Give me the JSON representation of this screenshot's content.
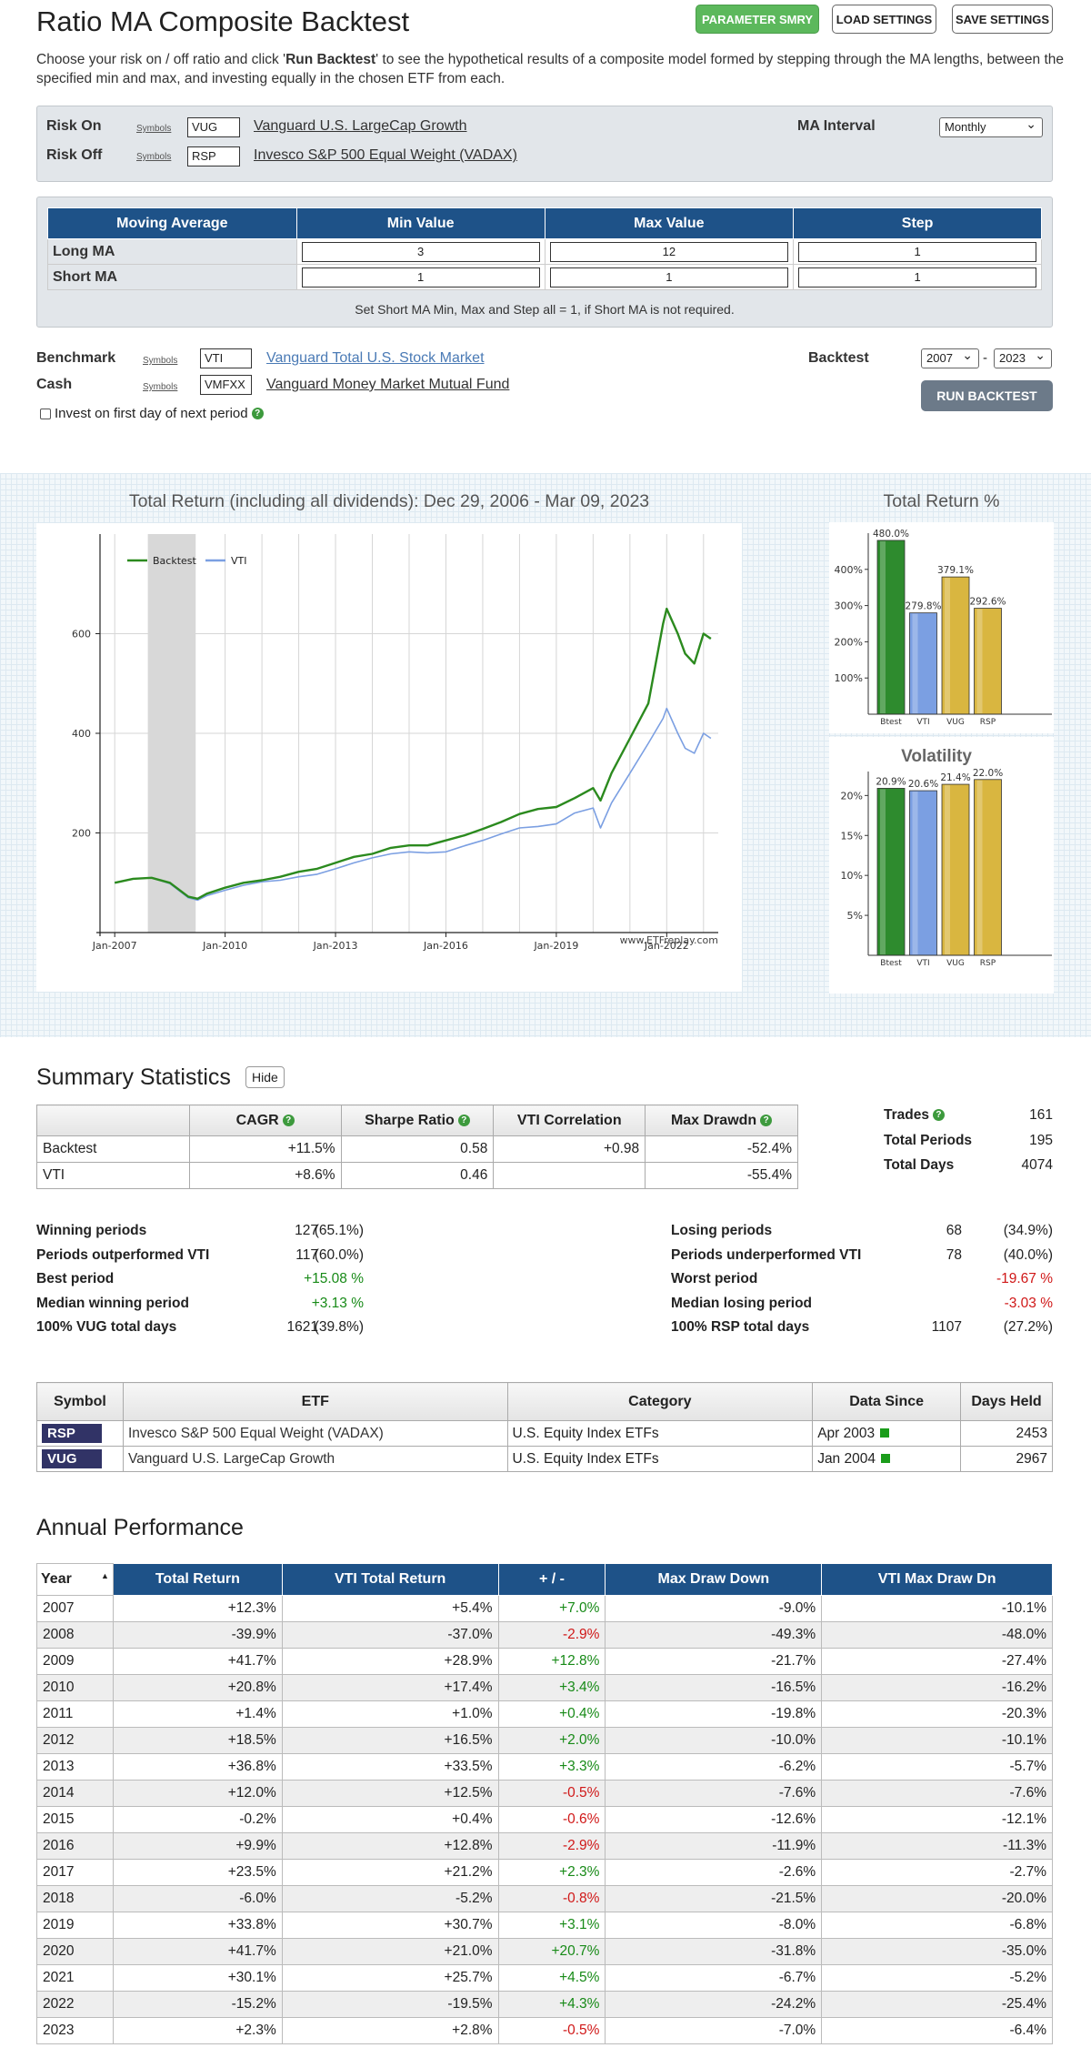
{
  "header": {
    "title": "Ratio MA Composite Backtest",
    "param_btn": "PARAMETER SMRY",
    "load_btn": "LOAD SETTINGS",
    "save_btn": "SAVE SETTINGS"
  },
  "intro": {
    "before": "Choose your risk on / off ratio and click '",
    "bold": "Run Backtest",
    "after": "' to see the hypothetical results of a composite model formed by stepping through the MA lengths, between the specified min and max, and investing equally in the chosen ETF from each."
  },
  "risk": {
    "on_label": "Risk On",
    "off_label": "Risk Off",
    "symbols_label": "Symbols",
    "on_symbol": "VUG",
    "off_symbol": "RSP",
    "on_name": "Vanguard U.S. LargeCap Growth",
    "off_name": "Invesco S&P 500 Equal Weight (VADAX)",
    "interval_label": "MA Interval",
    "interval_value": "Monthly"
  },
  "ma_table": {
    "headers": [
      "Moving Average",
      "Min Value",
      "Max Value",
      "Step"
    ],
    "rows": [
      {
        "label": "Long MA",
        "min": "3",
        "max": "12",
        "step": "1"
      },
      {
        "label": "Short MA",
        "min": "1",
        "max": "1",
        "step": "1"
      }
    ],
    "note": "Set Short MA Min, Max and Step all = 1, if Short MA is not required."
  },
  "settings": {
    "benchmark_label": "Benchmark",
    "benchmark_symbol": "VTI",
    "benchmark_name": "Vanguard Total U.S. Stock Market",
    "cash_label": "Cash",
    "cash_symbol": "VMFXX",
    "cash_name": "Vanguard Money Market Mutual Fund",
    "invest_first_day": "Invest on first day of next period",
    "backtest_label": "Backtest",
    "year_from": "2007",
    "year_to": "2023",
    "dash": "-",
    "run_btn": "RUN BACKTEST"
  },
  "chart_title": "Total Return (including all dividends): Dec 29, 2006 - Mar 09, 2023",
  "chart_data": [
    {
      "type": "line",
      "title": "Total Return (including all dividends): Dec 29, 2006 - Mar 09, 2023",
      "watermark": "www.ETFreplay.com",
      "x": [
        "2007",
        "2007.5",
        "2008",
        "2008.5",
        "2009",
        "2009.25",
        "2009.5",
        "2010",
        "2010.5",
        "2011",
        "2011.5",
        "2012",
        "2012.5",
        "2013",
        "2013.5",
        "2014",
        "2014.5",
        "2015",
        "2015.5",
        "2016",
        "2016.5",
        "2017",
        "2017.5",
        "2018",
        "2018.5",
        "2019",
        "2019.5",
        "2020",
        "2020.2",
        "2020.5",
        "2021",
        "2021.5",
        "2021.9",
        "2022",
        "2022.3",
        "2022.5",
        "2022.75",
        "2023",
        "2023.2"
      ],
      "x_ticks": [
        "Jan-2007",
        "Jan-2010",
        "Jan-2013",
        "Jan-2016",
        "Jan-2019",
        "Jan-2022"
      ],
      "y_ticks": [
        "200",
        "400",
        "600"
      ],
      "ylim": [
        0,
        800
      ],
      "legend_position": "top-left",
      "shaded_region": [
        "2007.9",
        "2009.2"
      ],
      "series": [
        {
          "name": "Backtest",
          "color": "#2b8a1e",
          "values": [
            100,
            108,
            110,
            100,
            72,
            68,
            78,
            90,
            100,
            105,
            112,
            122,
            128,
            140,
            152,
            158,
            170,
            175,
            175,
            185,
            195,
            208,
            222,
            238,
            248,
            252,
            270,
            290,
            265,
            320,
            390,
            460,
            620,
            650,
            600,
            560,
            540,
            600,
            590
          ]
        },
        {
          "name": "VTI",
          "color": "#7b9fe2",
          "values": [
            100,
            108,
            110,
            98,
            70,
            65,
            74,
            85,
            95,
            102,
            105,
            112,
            117,
            128,
            140,
            150,
            158,
            162,
            160,
            162,
            174,
            185,
            198,
            210,
            213,
            218,
            240,
            250,
            210,
            260,
            320,
            380,
            430,
            450,
            400,
            370,
            360,
            400,
            390
          ]
        }
      ]
    },
    {
      "type": "bar",
      "title": "Total Return %",
      "categories": [
        "Btest",
        "VTI",
        "VUG",
        "RSP"
      ],
      "values": [
        480.0,
        279.8,
        379.1,
        292.6
      ],
      "labels": [
        "480.0%",
        "279.8%",
        "379.1%",
        "292.6%"
      ],
      "y_ticks": [
        "100%",
        "200%",
        "300%",
        "400%"
      ],
      "ylim": [
        0,
        500
      ],
      "colors": [
        "#2e8b2e",
        "#7b9fe2",
        "#d9b640",
        "#d9b640"
      ]
    },
    {
      "type": "bar",
      "title": "Volatility",
      "categories": [
        "Btest",
        "VTI",
        "VUG",
        "RSP"
      ],
      "values": [
        20.9,
        20.6,
        21.4,
        22.0
      ],
      "labels": [
        "20.9%",
        "20.6%",
        "21.4%",
        "22.0%"
      ],
      "y_ticks": [
        "5%",
        "10%",
        "15%",
        "20%"
      ],
      "ylim": [
        0,
        23
      ],
      "colors": [
        "#2e8b2e",
        "#7b9fe2",
        "#d9b640",
        "#d9b640"
      ]
    }
  ],
  "bar1_title": "Total Return %",
  "bar2_title": "Volatility",
  "summary": {
    "title": "Summary Statistics",
    "hide_btn": "Hide",
    "headers": [
      "",
      "CAGR",
      "Sharpe Ratio",
      "VTI Correlation",
      "Max Drawdn"
    ],
    "rows": [
      {
        "name": "Backtest",
        "cagr": "+11.5%",
        "sharpe": "0.58",
        "corr": "+0.98",
        "dd": "-52.4%"
      },
      {
        "name": "VTI",
        "cagr": "+8.6%",
        "sharpe": "0.46",
        "corr": "",
        "dd": "-55.4%"
      }
    ],
    "trades_label": "Trades",
    "trades": "161",
    "periods_label": "Total Periods",
    "periods": "195",
    "days_label": "Total Days",
    "days": "4074"
  },
  "periods": {
    "left": [
      {
        "label": "Winning periods",
        "v1": "127",
        "v2": "(65.1%)",
        "cls": ""
      },
      {
        "label": "Periods outperformed VTI",
        "v1": "117",
        "v2": "(60.0%)",
        "cls": ""
      },
      {
        "label": "Best period",
        "v1": "",
        "v2": "+15.08 %",
        "cls": "pos"
      },
      {
        "label": "Median winning period",
        "v1": "",
        "v2": "+3.13 %",
        "cls": "pos"
      },
      {
        "label": "100% VUG total days",
        "v1": "1621",
        "v2": "(39.8%)",
        "cls": ""
      }
    ],
    "right": [
      {
        "label": "Losing periods",
        "v1": "68",
        "v2": "(34.9%)",
        "cls": ""
      },
      {
        "label": "Periods underperformed VTI",
        "v1": "78",
        "v2": "(40.0%)",
        "cls": ""
      },
      {
        "label": "Worst period",
        "v1": "",
        "v2": "-19.67 %",
        "cls": "neg"
      },
      {
        "label": "Median losing period",
        "v1": "",
        "v2": "-3.03 %",
        "cls": "neg"
      },
      {
        "label": "100% RSP total days",
        "v1": "1107",
        "v2": "(27.2%)",
        "cls": ""
      }
    ]
  },
  "etf_table": {
    "headers": [
      "Symbol",
      "ETF",
      "Category",
      "Data Since",
      "Days Held"
    ],
    "rows": [
      {
        "sym": "RSP",
        "name": "Invesco S&P 500 Equal Weight (VADAX)",
        "cat": "U.S. Equity Index ETFs",
        "since": "Apr 2003",
        "days": "2453"
      },
      {
        "sym": "VUG",
        "name": "Vanguard U.S. LargeCap Growth",
        "cat": "U.S. Equity Index ETFs",
        "since": "Jan 2004",
        "days": "2967"
      }
    ]
  },
  "annual": {
    "title": "Annual Performance",
    "headers": [
      "Year",
      "Total Return",
      "VTI Total Return",
      "+ / -",
      "Max Draw Down",
      "VTI Max Draw Dn"
    ],
    "rows": [
      [
        "2007",
        "+12.3%",
        "+5.4%",
        "+7.0%",
        "-9.0%",
        "-10.1%"
      ],
      [
        "2008",
        "-39.9%",
        "-37.0%",
        "-2.9%",
        "-49.3%",
        "-48.0%"
      ],
      [
        "2009",
        "+41.7%",
        "+28.9%",
        "+12.8%",
        "-21.7%",
        "-27.4%"
      ],
      [
        "2010",
        "+20.8%",
        "+17.4%",
        "+3.4%",
        "-16.5%",
        "-16.2%"
      ],
      [
        "2011",
        "+1.4%",
        "+1.0%",
        "+0.4%",
        "-19.8%",
        "-20.3%"
      ],
      [
        "2012",
        "+18.5%",
        "+16.5%",
        "+2.0%",
        "-10.0%",
        "-10.1%"
      ],
      [
        "2013",
        "+36.8%",
        "+33.5%",
        "+3.3%",
        "-6.2%",
        "-5.7%"
      ],
      [
        "2014",
        "+12.0%",
        "+12.5%",
        "-0.5%",
        "-7.6%",
        "-7.6%"
      ],
      [
        "2015",
        "-0.2%",
        "+0.4%",
        "-0.6%",
        "-12.6%",
        "-12.1%"
      ],
      [
        "2016",
        "+9.9%",
        "+12.8%",
        "-2.9%",
        "-11.9%",
        "-11.3%"
      ],
      [
        "2017",
        "+23.5%",
        "+21.2%",
        "+2.3%",
        "-2.6%",
        "-2.7%"
      ],
      [
        "2018",
        "-6.0%",
        "-5.2%",
        "-0.8%",
        "-21.5%",
        "-20.0%"
      ],
      [
        "2019",
        "+33.8%",
        "+30.7%",
        "+3.1%",
        "-8.0%",
        "-6.8%"
      ],
      [
        "2020",
        "+41.7%",
        "+21.0%",
        "+20.7%",
        "-31.8%",
        "-35.0%"
      ],
      [
        "2021",
        "+30.1%",
        "+25.7%",
        "+4.5%",
        "-6.7%",
        "-5.2%"
      ],
      [
        "2022",
        "-15.2%",
        "-19.5%",
        "+4.3%",
        "-24.2%",
        "-25.4%"
      ],
      [
        "2023",
        "+2.3%",
        "+2.8%",
        "-0.5%",
        "-7.0%",
        "-6.4%"
      ]
    ]
  }
}
